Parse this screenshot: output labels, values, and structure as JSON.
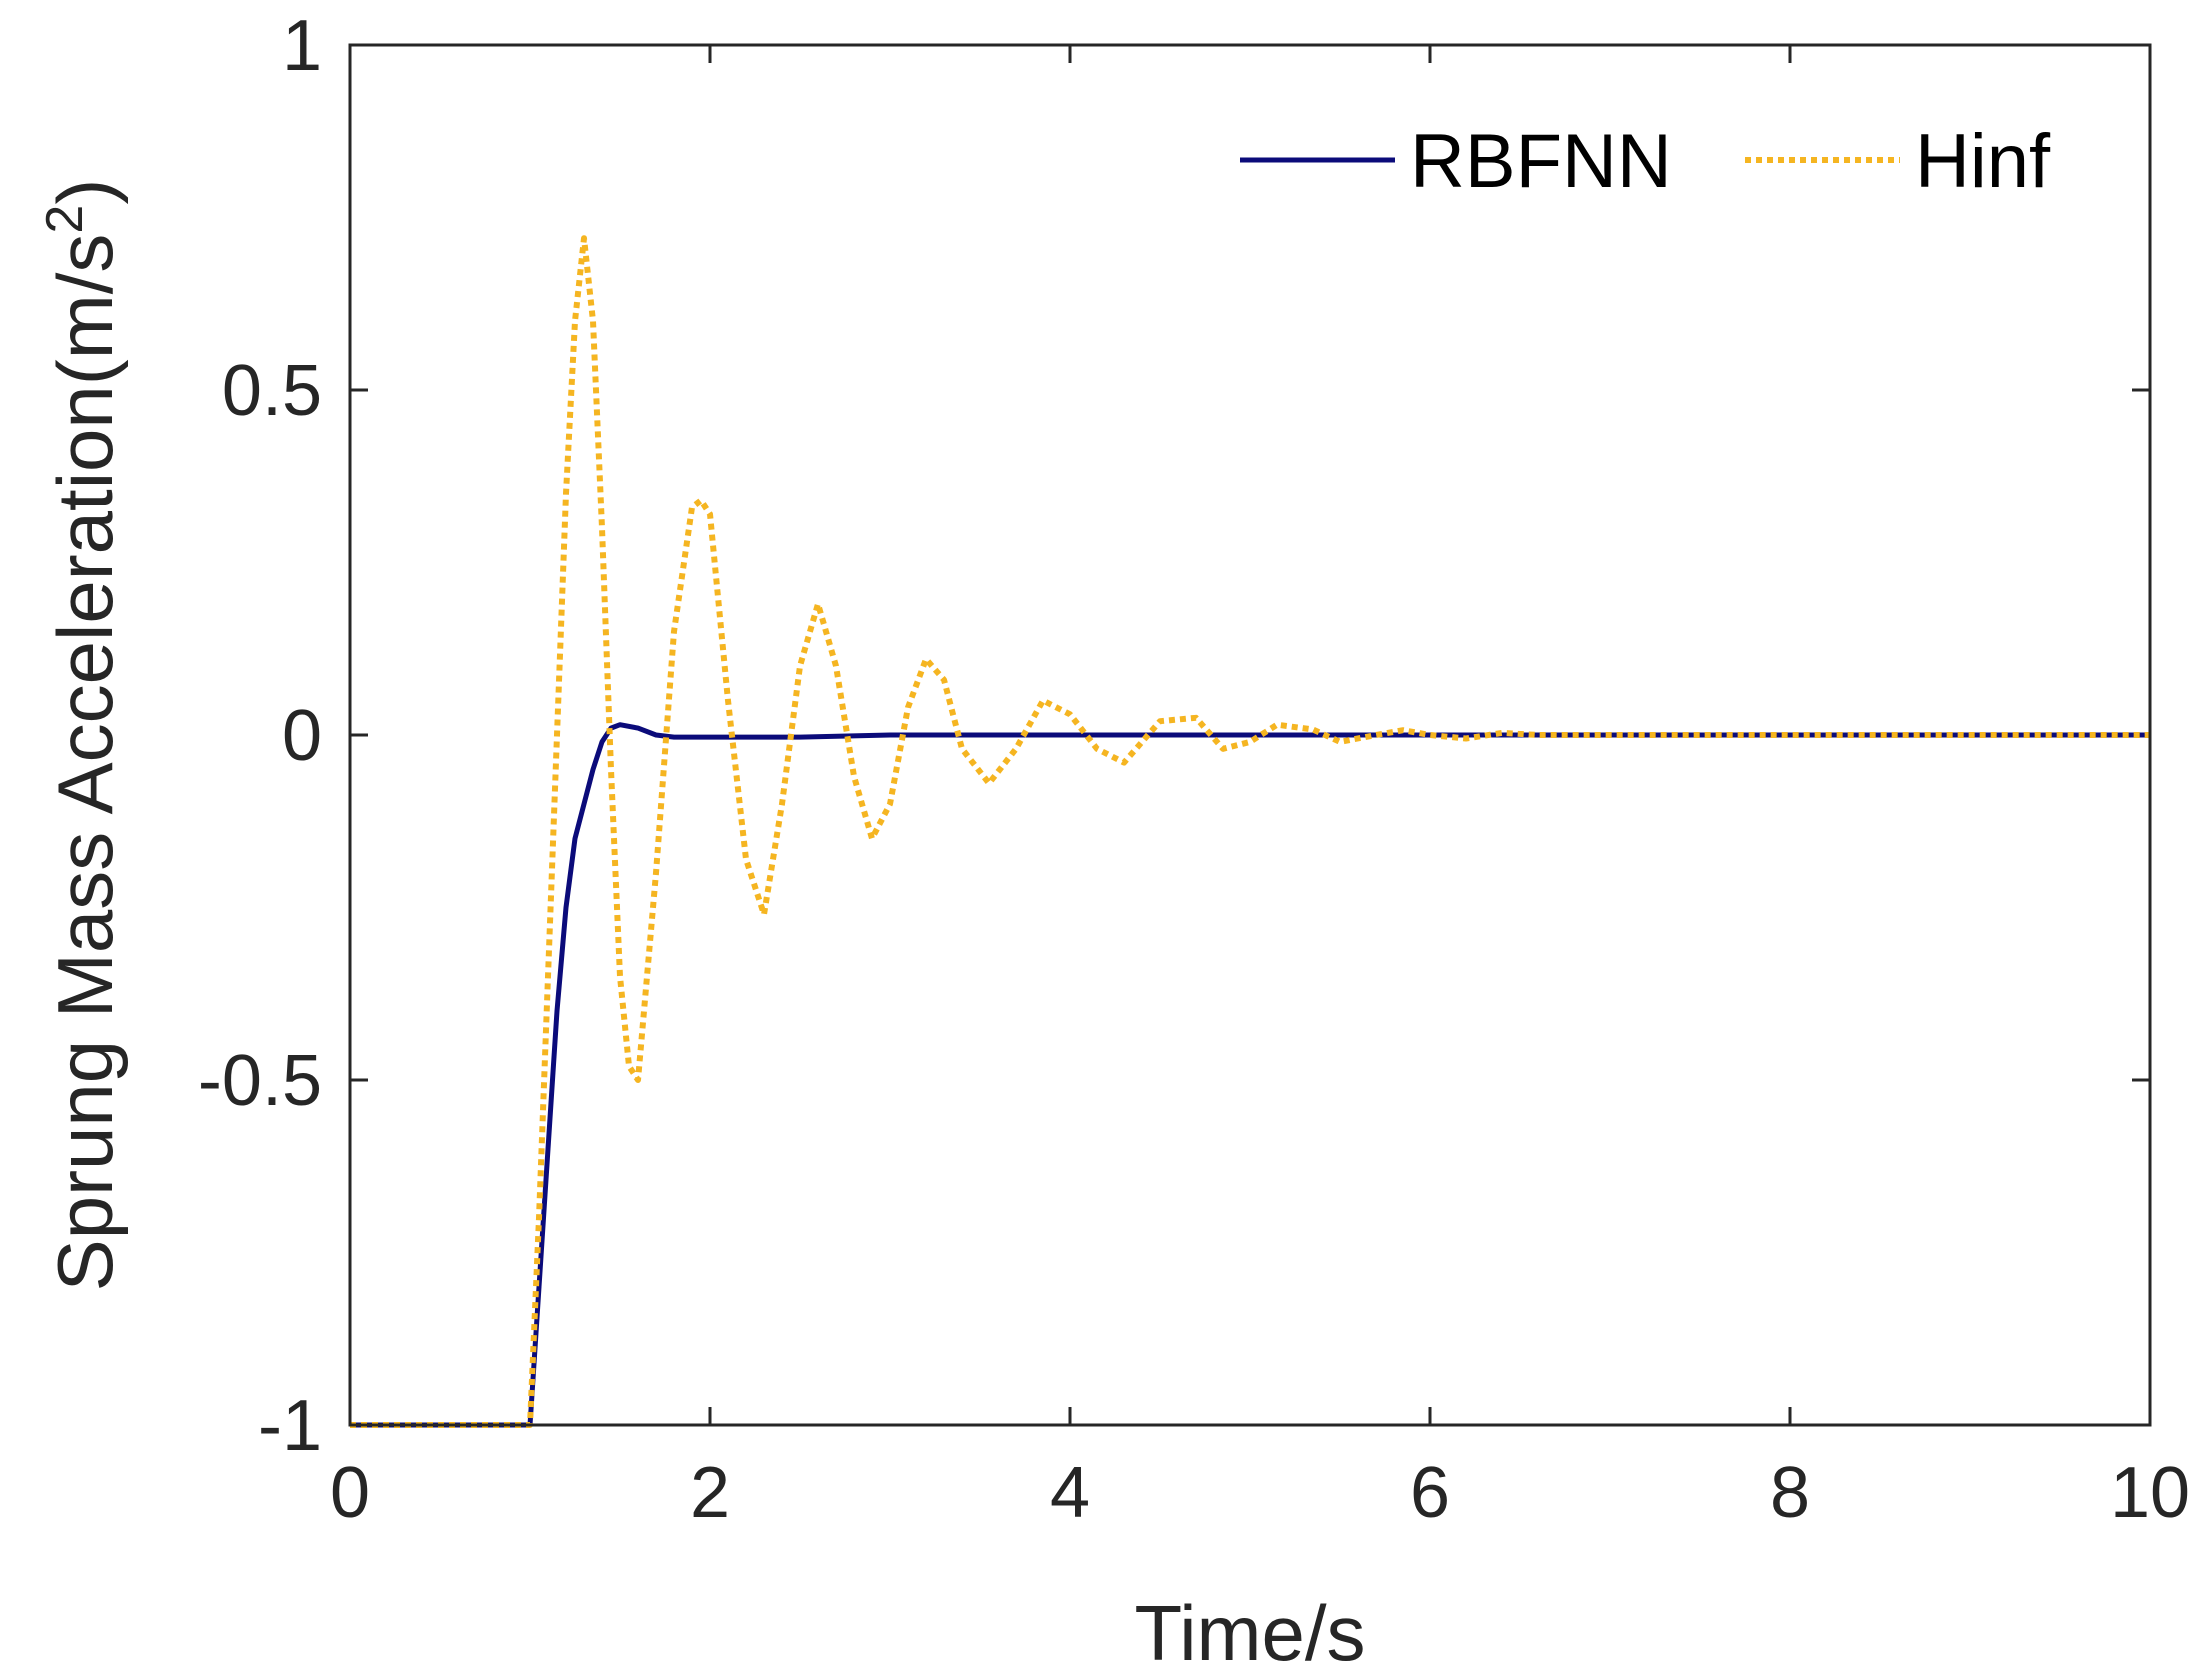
{
  "chart_data": {
    "type": "line",
    "title": "",
    "xlabel": "Time/s",
    "ylabel_main": "Sprung Mass Acceleration(m/s",
    "ylabel_sup": "2",
    "ylabel_close": ")",
    "xlim": [
      0,
      10
    ],
    "ylim": [
      -1,
      1
    ],
    "xticks": [
      0,
      2,
      4,
      6,
      8,
      10
    ],
    "xtick_labels": [
      "0",
      "2",
      "4",
      "6",
      "8",
      "10"
    ],
    "yticks": [
      -1,
      -0.5,
      0,
      0.5,
      1
    ],
    "ytick_labels": [
      "-1",
      "-0.5",
      "0",
      "0.5",
      "1"
    ],
    "grid": false,
    "legend_position": "top-right",
    "series": [
      {
        "name": "RBFNN",
        "color": "#0b0b7a",
        "style": "solid",
        "x": [
          0,
          0.5,
          1.0,
          1.05,
          1.1,
          1.15,
          1.2,
          1.25,
          1.3,
          1.35,
          1.4,
          1.45,
          1.5,
          1.6,
          1.7,
          1.8,
          2.0,
          2.5,
          3,
          4,
          5,
          6,
          7,
          8,
          9,
          10
        ],
        "y": [
          -1,
          -1,
          -1,
          -0.8,
          -0.6,
          -0.4,
          -0.25,
          -0.15,
          -0.1,
          -0.05,
          -0.01,
          0.01,
          0.015,
          0.01,
          0.0,
          -0.003,
          -0.003,
          -0.003,
          0.0,
          0.0,
          0.0,
          0.0,
          0.0,
          0.0,
          0.0,
          0.0
        ]
      },
      {
        "name": "Hinf",
        "color": "#f5b521",
        "style": "dotted",
        "x": [
          0,
          0.5,
          1.0,
          1.05,
          1.1,
          1.15,
          1.2,
          1.25,
          1.3,
          1.35,
          1.4,
          1.45,
          1.5,
          1.55,
          1.6,
          1.7,
          1.8,
          1.9,
          1.95,
          2.0,
          2.1,
          2.2,
          2.3,
          2.4,
          2.5,
          2.6,
          2.7,
          2.8,
          2.9,
          3.0,
          3.1,
          3.2,
          3.3,
          3.4,
          3.55,
          3.7,
          3.85,
          4.0,
          4.15,
          4.3,
          4.5,
          4.7,
          4.85,
          5.0,
          5.15,
          5.35,
          5.5,
          5.7,
          5.85,
          6.0,
          6.2,
          6.4,
          6.6,
          7.0,
          8.0,
          9.0,
          10.0
        ],
        "y": [
          -1,
          -1,
          -1,
          -0.7,
          -0.35,
          0.0,
          0.35,
          0.6,
          0.72,
          0.6,
          0.3,
          -0.05,
          -0.35,
          -0.48,
          -0.5,
          -0.2,
          0.15,
          0.33,
          0.34,
          0.32,
          0.05,
          -0.18,
          -0.26,
          -0.1,
          0.1,
          0.19,
          0.1,
          -0.06,
          -0.15,
          -0.1,
          0.04,
          0.11,
          0.08,
          -0.02,
          -0.07,
          -0.02,
          0.05,
          0.03,
          -0.02,
          -0.04,
          0.02,
          0.025,
          -0.02,
          -0.01,
          0.015,
          0.008,
          -0.01,
          0.0,
          0.007,
          0.0,
          -0.005,
          0.003,
          0.0,
          0.0,
          0.0,
          0.0,
          0.0
        ]
      }
    ]
  }
}
